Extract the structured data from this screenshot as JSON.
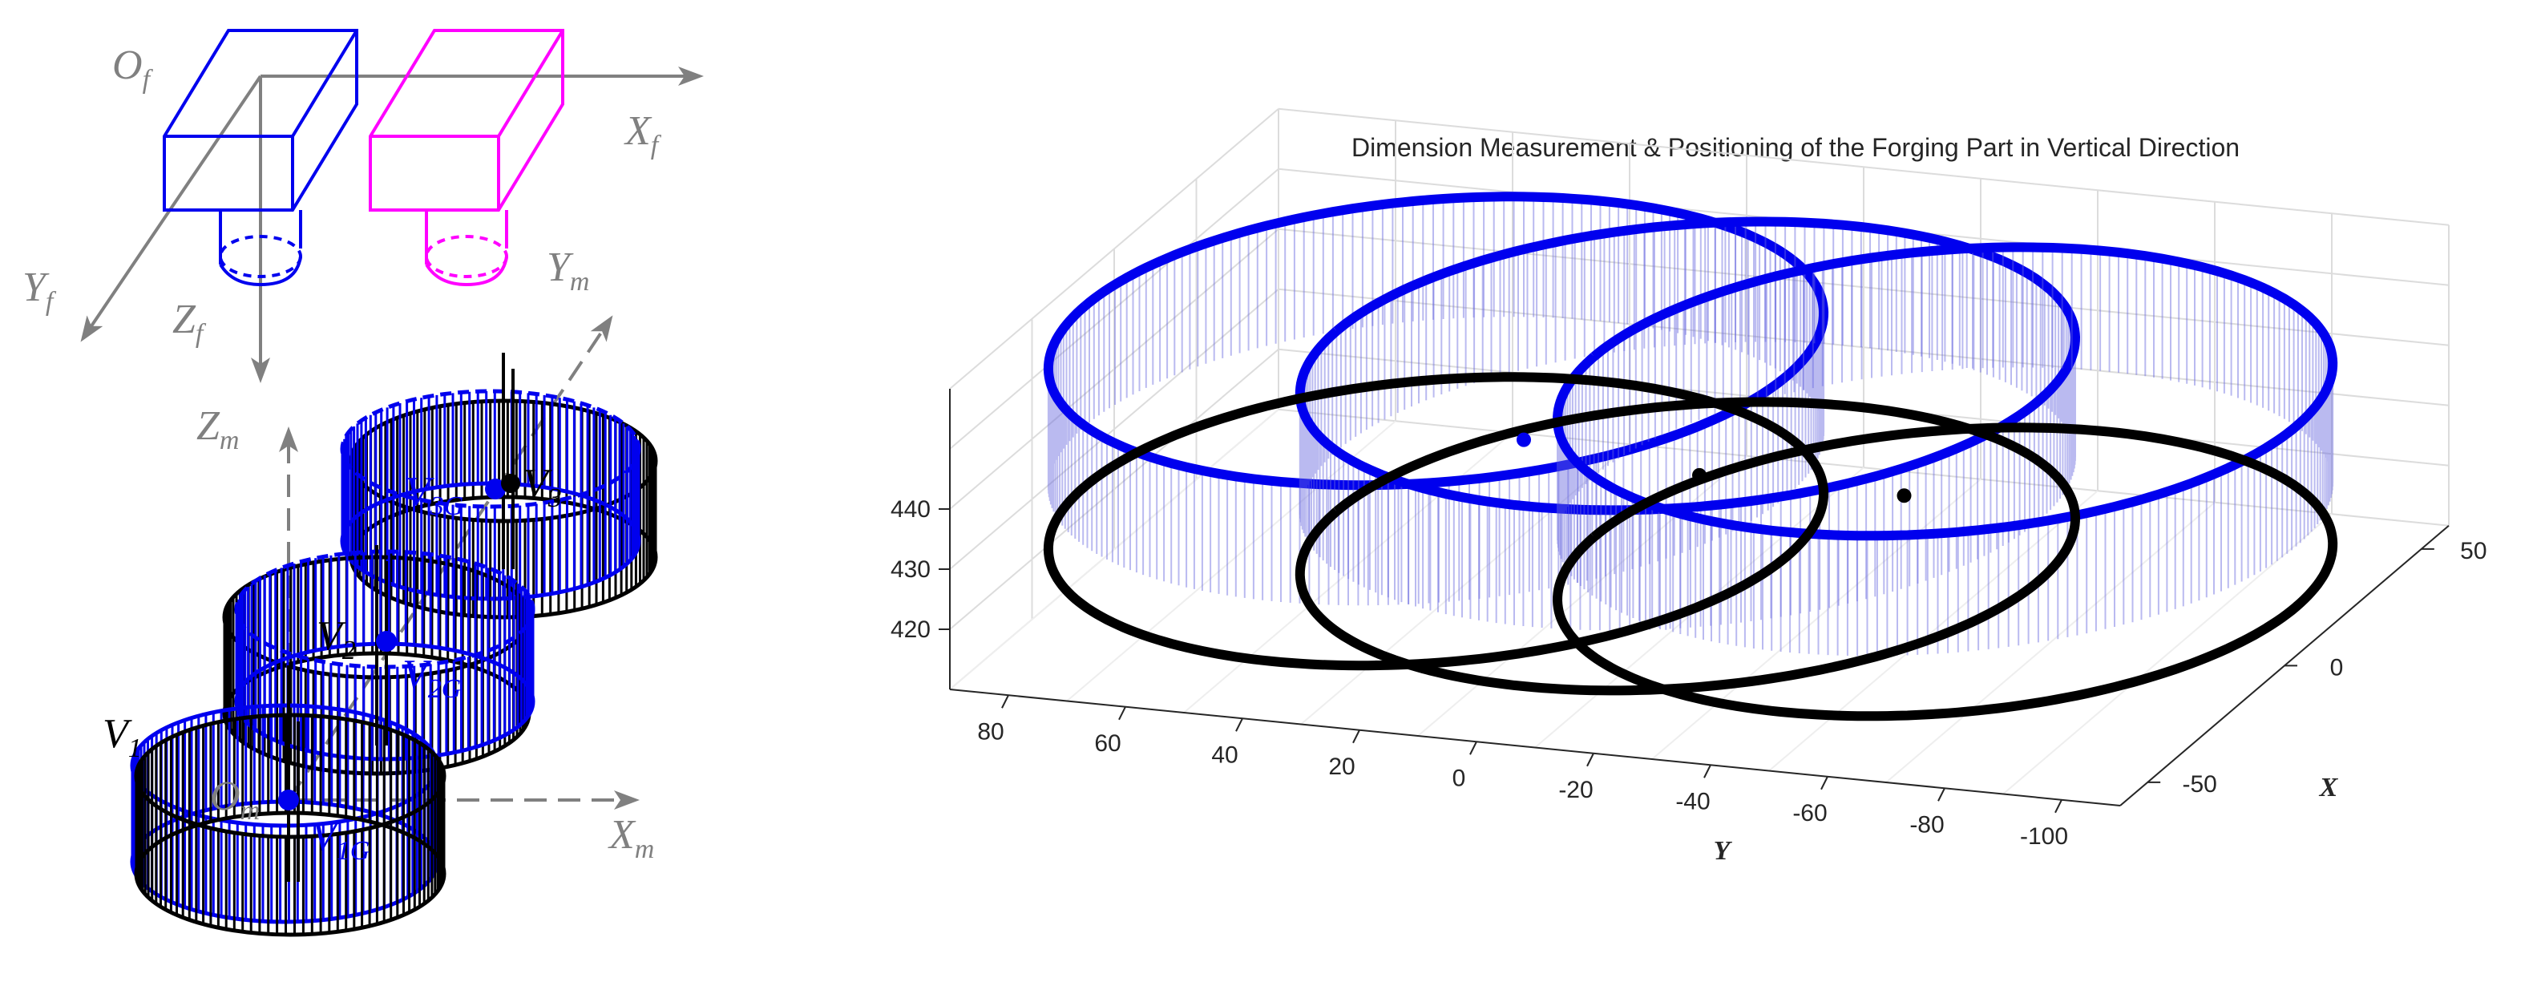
{
  "diagram": {
    "frame_f": {
      "origin": "O",
      "origin_sub": "f",
      "x": "X",
      "x_sub": "f",
      "y": "Y",
      "y_sub": "f",
      "z": "Z",
      "z_sub": "f"
    },
    "frame_m": {
      "origin": "O",
      "origin_sub": "m",
      "x": "X",
      "x_sub": "m",
      "y": "Y",
      "y_sub": "m",
      "z": "Z",
      "z_sub": "m"
    },
    "v1": {
      "base": "V",
      "sub": "1"
    },
    "v2": {
      "base": "V",
      "sub": "2"
    },
    "v3": {
      "base": "V",
      "sub": "3"
    },
    "v1g": {
      "base": "V",
      "sub": "1G"
    },
    "v2g": {
      "base": "V",
      "sub": "2G"
    },
    "v3g": {
      "base": "V",
      "sub": "3G"
    },
    "colors": {
      "blue": "#0000ee",
      "magenta": "#ff00ff",
      "gray": "#808080",
      "black": "#000000"
    }
  },
  "chart_data": {
    "type": "scatter3d",
    "title": "Dimension Measurement & Positioning of the Forging Part in Vertical Direction",
    "xlabel": "X",
    "ylabel": "Y",
    "zlabel": "",
    "x_ticks": [
      "-50",
      "0",
      "50"
    ],
    "y_ticks": [
      "80",
      "60",
      "40",
      "20",
      "0",
      "-20",
      "-40",
      "-60",
      "-80",
      "-100"
    ],
    "z_ticks": [
      "420",
      "430",
      "440"
    ],
    "xlim": [
      -60,
      60
    ],
    "ylim": [
      -110,
      90
    ],
    "zlim": [
      410,
      460
    ],
    "grid": true,
    "series": [
      {
        "color": "#0000ee",
        "rings": [
          {
            "cx": 0,
            "cy": 35,
            "cz": 440,
            "radius": 60,
            "height": 20
          },
          {
            "cx": 0,
            "cy": -8,
            "cz": 440,
            "radius": 60,
            "height": 20
          },
          {
            "cx": 0,
            "cy": -52,
            "cz": 440,
            "radius": 60,
            "height": 20
          }
        ],
        "centers": [
          {
            "x": 0,
            "y": 20,
            "z": 435
          }
        ]
      },
      {
        "color": "#000000",
        "rings": [
          {
            "cx": 0,
            "cy": 35,
            "cz": 430,
            "radius": 60,
            "height": 20
          },
          {
            "cx": 0,
            "cy": -8,
            "cz": 430,
            "radius": 60,
            "height": 20
          },
          {
            "cx": 0,
            "cy": -52,
            "cz": 430,
            "radius": 60,
            "height": 20
          }
        ],
        "centers": [
          {
            "x": 0,
            "y": -10,
            "z": 432
          },
          {
            "x": 0,
            "y": -45,
            "z": 432
          }
        ]
      }
    ]
  }
}
